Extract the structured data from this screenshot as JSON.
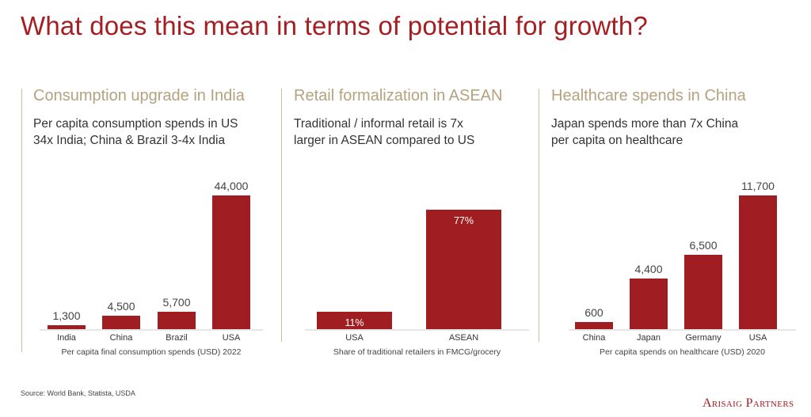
{
  "title": "What does this mean in terms of potential for growth?",
  "source": "Source: World Bank, Statista, USDA",
  "logo": "Arisaig Partners",
  "colors": {
    "title": "#a51e22",
    "heading": "#b5a27f",
    "bar": "#a01e21"
  },
  "panels": [
    {
      "heading": "Consumption upgrade in India",
      "subtitle": [
        "Per capita consumption spends in US",
        "34x India; China & Brazil 3-4x India"
      ]
    },
    {
      "heading": "Retail formalization in ASEAN",
      "subtitle": [
        "Traditional / informal retail is 7x",
        "larger in ASEAN compared to US"
      ]
    },
    {
      "heading": "Healthcare spends in China",
      "subtitle": [
        "Japan spends more than 7x China",
        "per capita on healthcare"
      ]
    }
  ],
  "chart_data": [
    {
      "type": "bar",
      "categories": [
        "India",
        "China",
        "Brazil",
        "USA"
      ],
      "values": [
        1300,
        4500,
        5700,
        44000
      ],
      "data_labels": [
        "1,300",
        "4,500",
        "5,700",
        "44,000"
      ],
      "label_position": "above",
      "xlabel": "Per capita final consumption spends (USD) 2022",
      "ylim": [
        0,
        44000
      ],
      "grid": false
    },
    {
      "type": "bar",
      "categories": [
        "USA",
        "ASEAN"
      ],
      "values": [
        11,
        77
      ],
      "data_labels": [
        "11%",
        "77%"
      ],
      "label_position": "inside",
      "xlabel": "Share of traditional retailers in FMCG/grocery",
      "ylim": [
        0,
        86
      ],
      "grid": false
    },
    {
      "type": "bar",
      "categories": [
        "China",
        "Japan",
        "Germany",
        "USA"
      ],
      "values": [
        600,
        4400,
        6500,
        11700
      ],
      "data_labels": [
        "600",
        "4,400",
        "6,500",
        "11,700"
      ],
      "label_position": "above",
      "xlabel": "Per capita spends on healthcare (USD) 2020",
      "ylim": [
        0,
        11700
      ],
      "grid": false
    }
  ]
}
